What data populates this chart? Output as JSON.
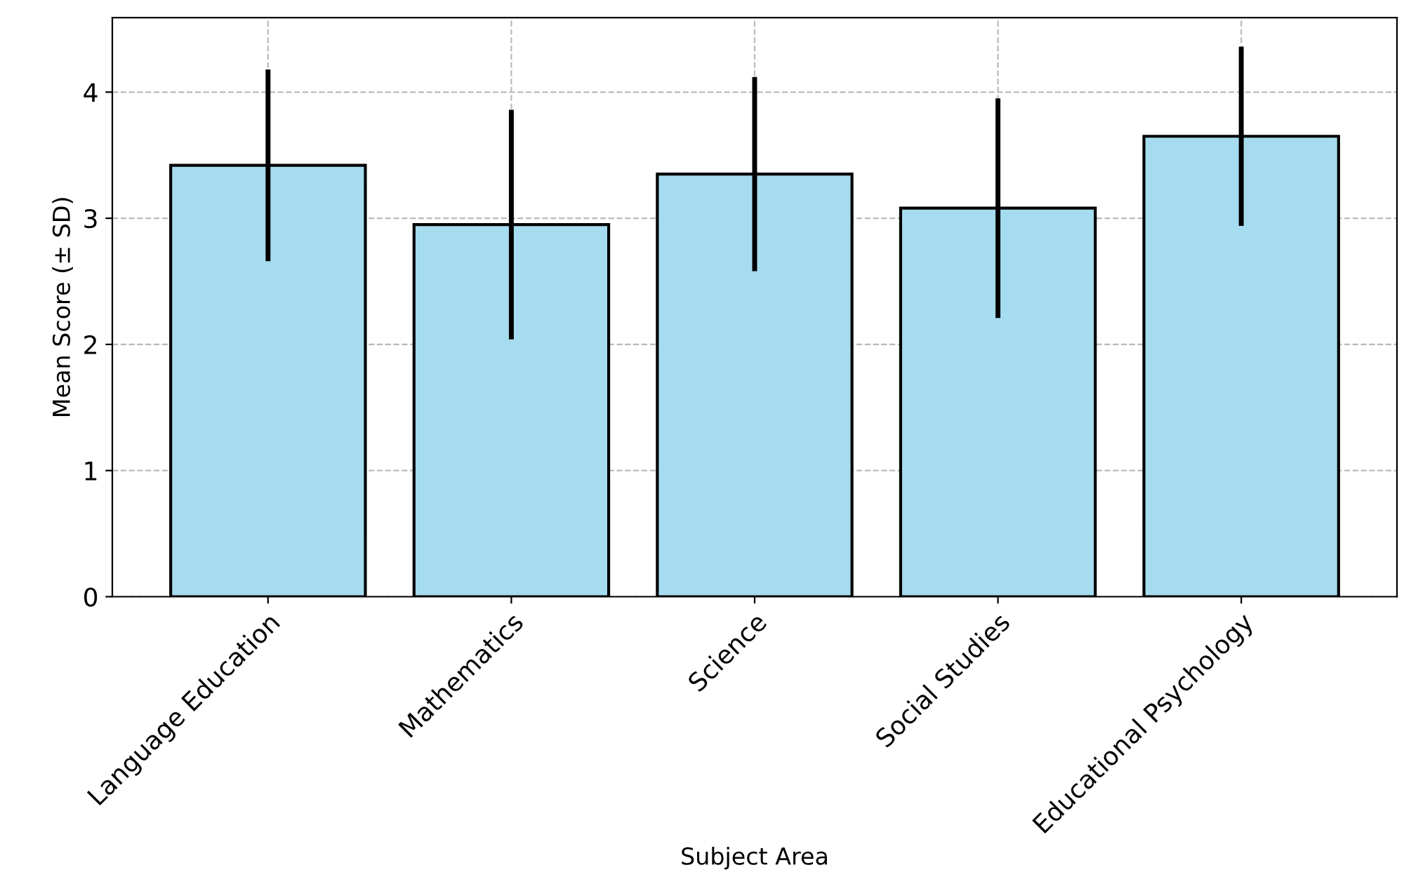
{
  "chart_data": {
    "type": "bar",
    "xlabel": "Subject Area",
    "ylabel": "Mean Score (± SD)",
    "categories": [
      "Language Education",
      "Mathematics",
      "Science",
      "Social Studies",
      "Educational Psychology"
    ],
    "values": [
      3.42,
      2.95,
      3.35,
      3.08,
      3.65
    ],
    "errors": [
      0.76,
      0.91,
      0.77,
      0.87,
      0.71
    ],
    "color": "#a6dcef",
    "ylim": [
      0,
      4.59
    ],
    "yticks": [
      0,
      1,
      2,
      3,
      4
    ],
    "grid": true
  }
}
